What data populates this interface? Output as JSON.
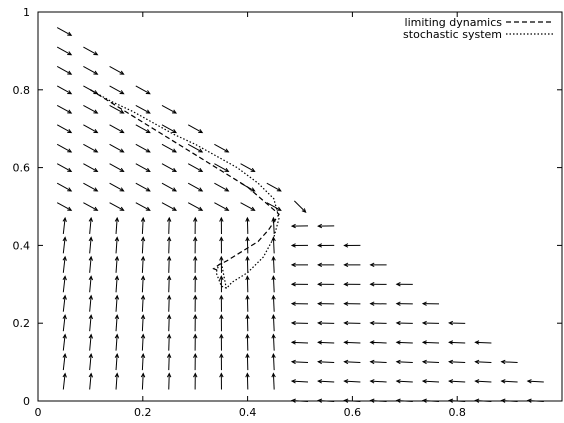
{
  "chart_data": {
    "type": "line",
    "title": "",
    "xlabel": "",
    "ylabel": "",
    "xlim": [
      0,
      1
    ],
    "ylim": [
      0,
      1
    ],
    "x_ticks": [
      "0",
      "0.2",
      "0.4",
      "0.6",
      "0.8"
    ],
    "y_ticks": [
      "0",
      "0.2",
      "0.4",
      "0.6",
      "0.8",
      "1"
    ],
    "grid": false,
    "legend_position": "top-right",
    "vector_field": {
      "description_free": true,
      "step": 0.05,
      "arrow_color": "#000000"
    },
    "series": [
      {
        "name": "limiting dynamics",
        "style": "dashed",
        "x": [
          0.1,
          0.13,
          0.16,
          0.19,
          0.22,
          0.25,
          0.28,
          0.31,
          0.34,
          0.37,
          0.4,
          0.43,
          0.46,
          0.44,
          0.42,
          0.39,
          0.36,
          0.345,
          0.335,
          0.345
        ],
        "y": [
          0.8,
          0.775,
          0.75,
          0.725,
          0.7,
          0.675,
          0.65,
          0.625,
          0.6,
          0.575,
          0.55,
          0.515,
          0.48,
          0.44,
          0.41,
          0.385,
          0.36,
          0.35,
          0.34,
          0.335
        ]
      },
      {
        "name": "stochastic system",
        "style": "dotted",
        "x": [
          0.1,
          0.14,
          0.18,
          0.22,
          0.26,
          0.3,
          0.34,
          0.38,
          0.42,
          0.45,
          0.46,
          0.45,
          0.43,
          0.4,
          0.37,
          0.36,
          0.35,
          0.34,
          0.345,
          0.35,
          0.36
        ],
        "y": [
          0.8,
          0.77,
          0.745,
          0.715,
          0.685,
          0.66,
          0.63,
          0.6,
          0.56,
          0.52,
          0.47,
          0.42,
          0.37,
          0.33,
          0.305,
          0.29,
          0.295,
          0.33,
          0.35,
          0.355,
          0.285
        ]
      }
    ]
  }
}
